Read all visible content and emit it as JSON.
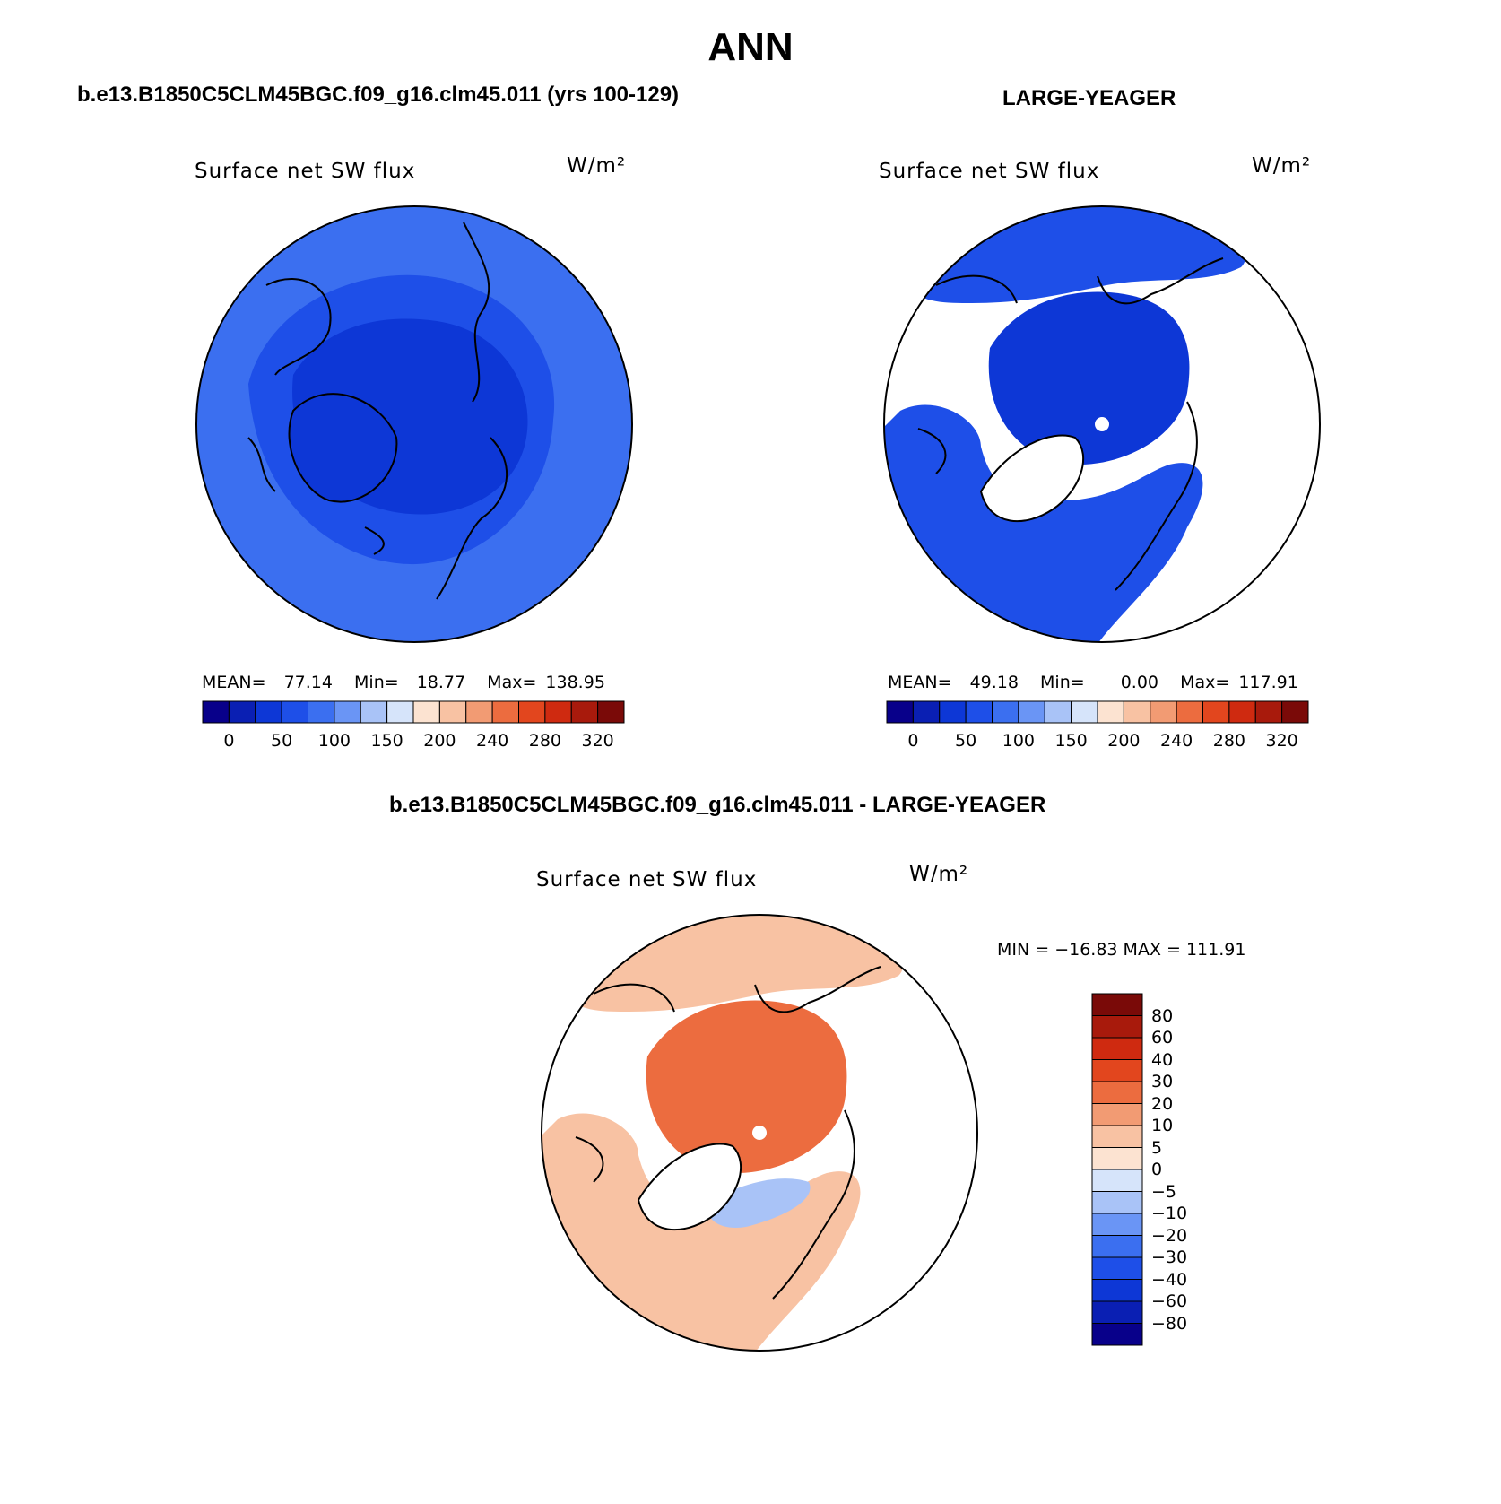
{
  "title": "ANN",
  "panels": [
    {
      "id": "model",
      "header": "b.e13.B1850C5CLM45BGC.f09_g16.clm45.011 (yrs 100-129)",
      "variable": "Surface net SW flux",
      "units": "W/m²",
      "stats": {
        "mean_label": "MEAN=",
        "mean": "77.14",
        "min_label": "Min=",
        "min": "18.77",
        "max_label": "Max=",
        "max": "138.95"
      }
    },
    {
      "id": "obs",
      "header": "LARGE-YEAGER",
      "variable": "Surface net SW flux",
      "units": "W/m²",
      "stats": {
        "mean_label": "MEAN=",
        "mean": "49.18",
        "min_label": "Min=",
        "min": "0.00",
        "max_label": "Max=",
        "max": "117.91"
      }
    },
    {
      "id": "diff",
      "header": "b.e13.B1850C5CLM45BGC.f09_g16.clm45.011 - LARGE-YEAGER",
      "variable": "Surface net SW flux",
      "units": "W/m²",
      "stats_text": "MIN = −16.83 MAX = 111.91"
    }
  ],
  "colorbar_abs": {
    "ticks": [
      "0",
      "50",
      "100",
      "150",
      "200",
      "240",
      "280",
      "320"
    ],
    "colors": [
      "#08008a",
      "#0a1fb3",
      "#0d37d6",
      "#1e4fe8",
      "#3b6ff0",
      "#6a95f5",
      "#a9c3f7",
      "#d6e4fa",
      "#fce3d1",
      "#f8c2a3",
      "#f29b73",
      "#ec6c3f",
      "#e2461e",
      "#cf2a10",
      "#a81a0c",
      "#7a0a08"
    ]
  },
  "colorbar_diff": {
    "ticks": [
      "80",
      "60",
      "40",
      "30",
      "20",
      "10",
      "5",
      "0",
      "−5",
      "−10",
      "−20",
      "−30",
      "−40",
      "−60",
      "−80"
    ],
    "colors": [
      "#7a0a08",
      "#a81a0c",
      "#cf2a10",
      "#e2461e",
      "#ec6c3f",
      "#f29b73",
      "#f8c2a3",
      "#fce3d1",
      "#d6e4fa",
      "#a9c3f7",
      "#6a95f5",
      "#3b6ff0",
      "#1e4fe8",
      "#0d37d6",
      "#0a1fb3",
      "#08008a"
    ]
  },
  "map_fill": {
    "model_base": "#3b6ff0",
    "model_mid": "#1e4fe8",
    "model_core": "#0d37d6",
    "obs_ocean": "#1e4fe8",
    "obs_core": "#0d37d6",
    "diff_base": "#f8c2a3",
    "diff_core": "#ec6c3f",
    "diff_cool": "#a9c3f7"
  }
}
